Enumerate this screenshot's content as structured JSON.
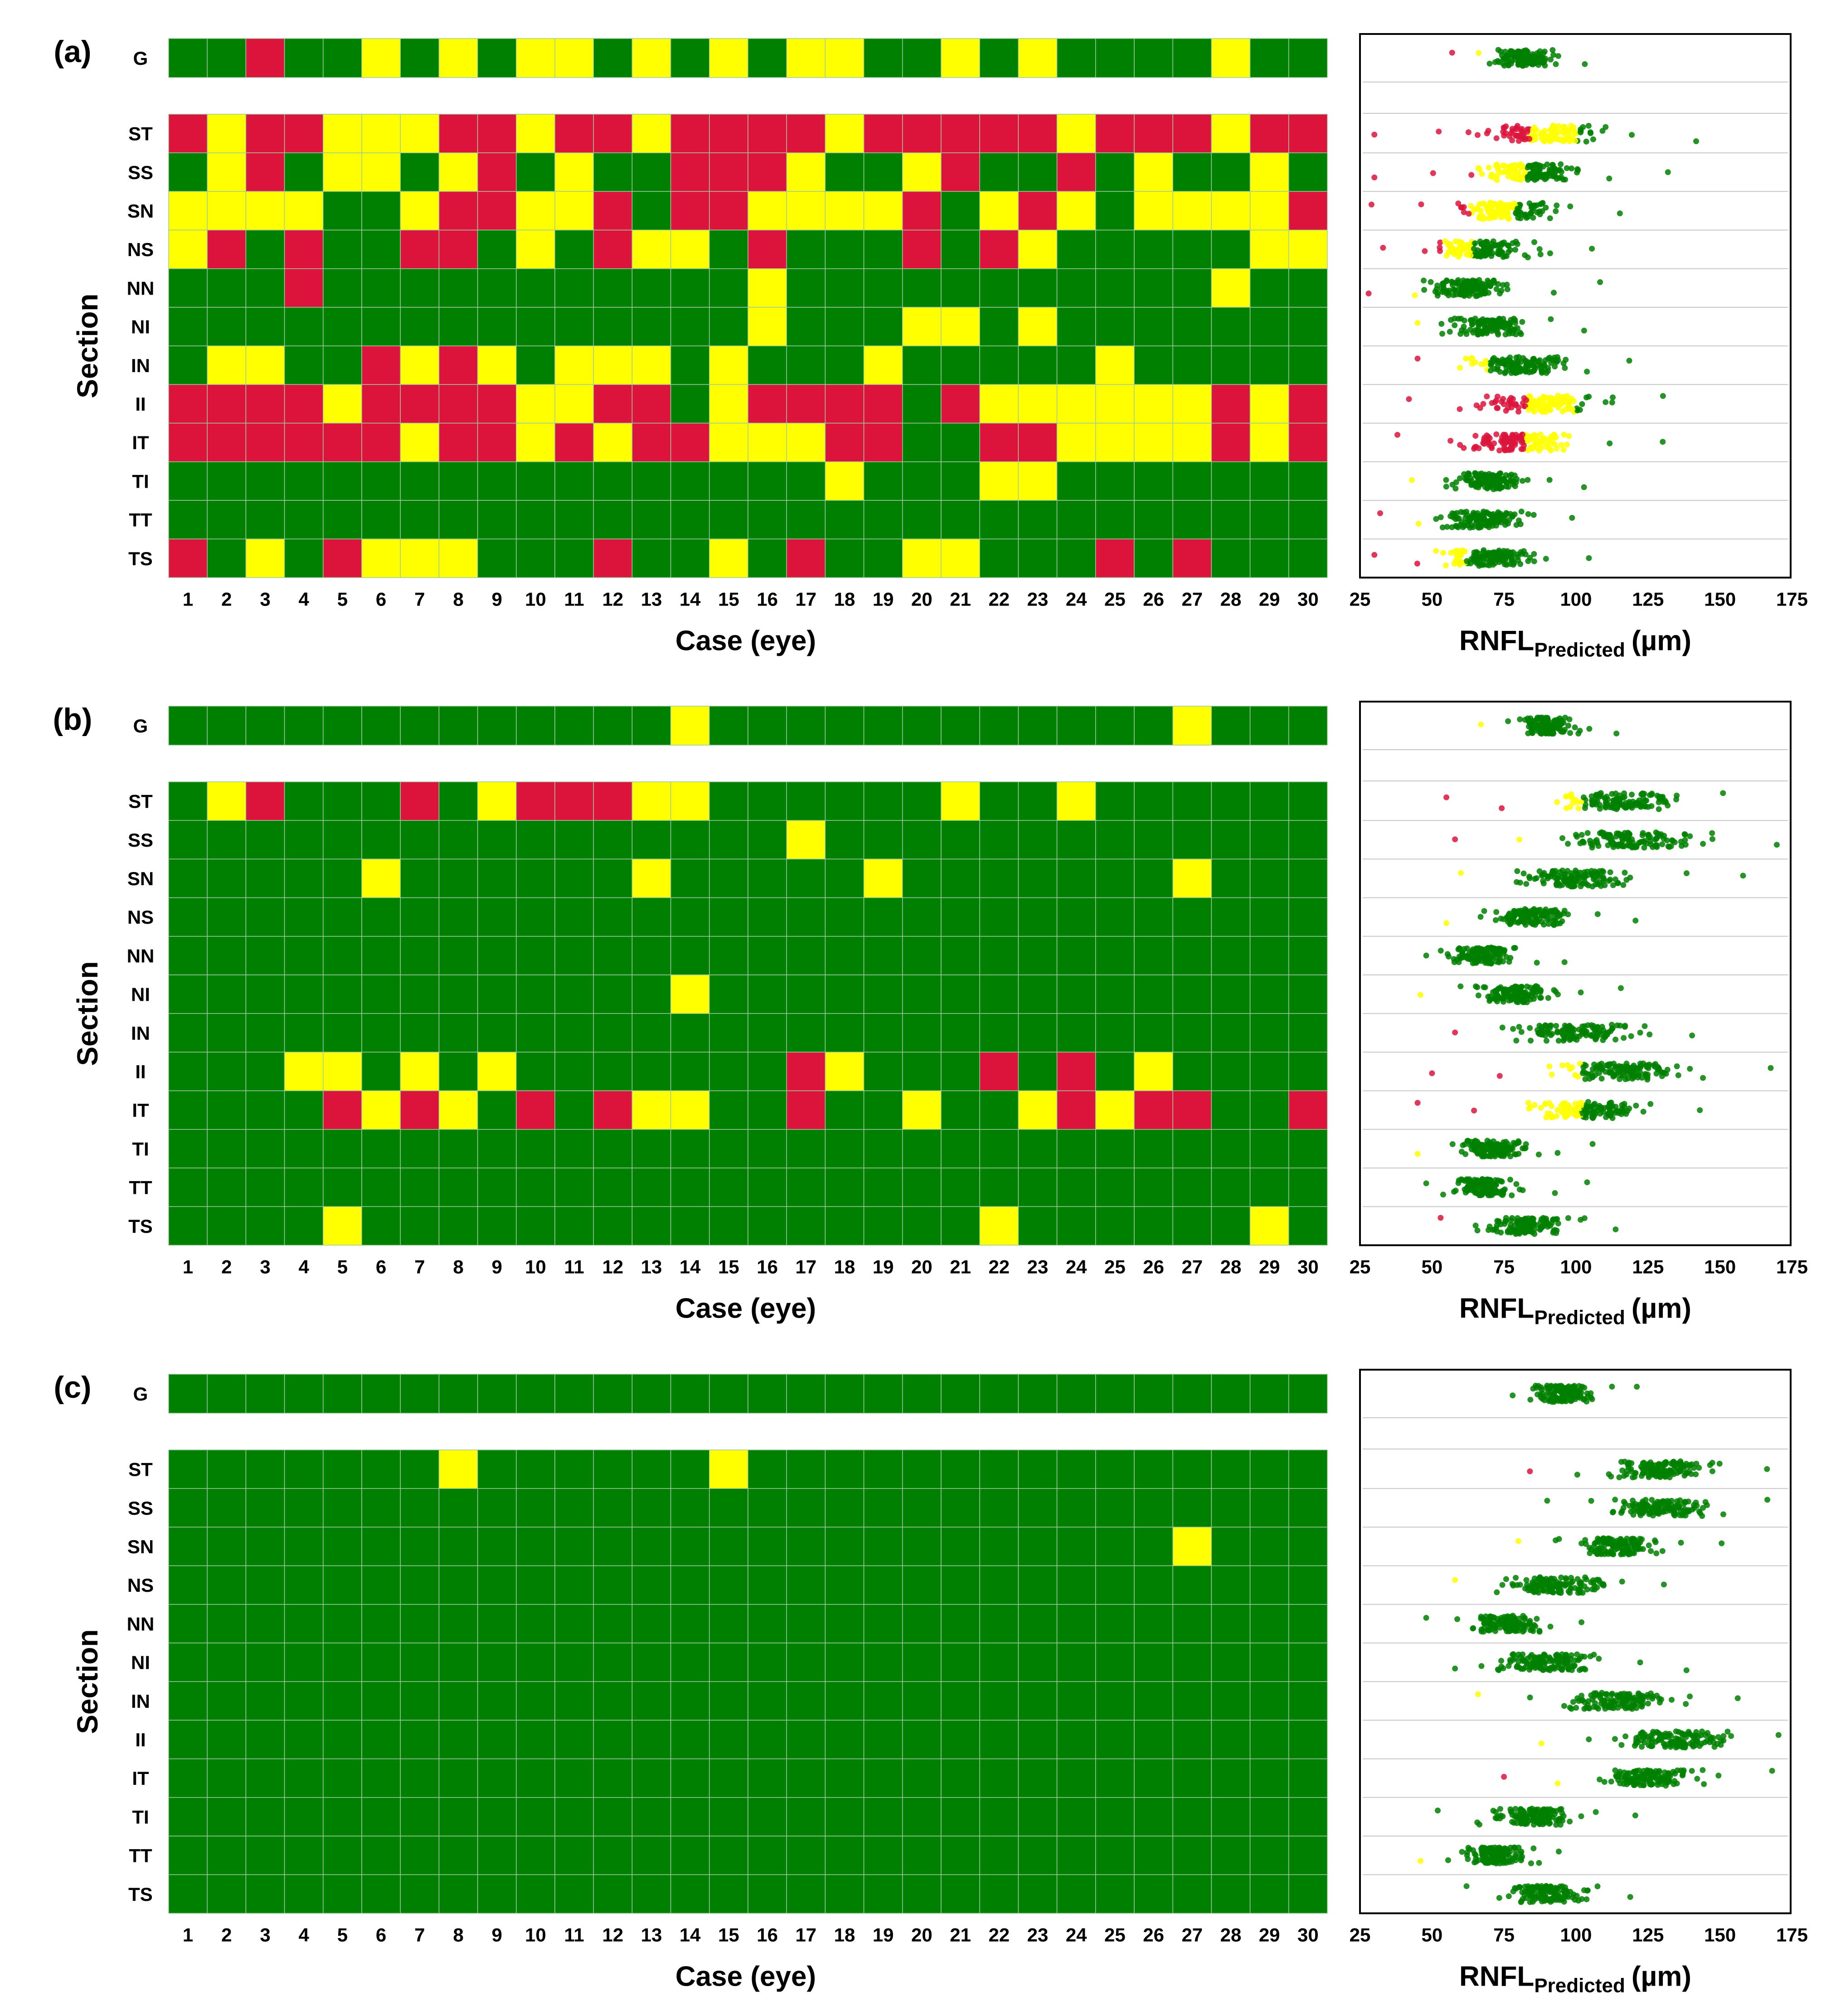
{
  "colors": {
    "green": "#008000",
    "yellow": "#ffff00",
    "red": "#dc143c",
    "grid_line": "#a0c8a0",
    "text": "#000000"
  },
  "chart_data": [
    {
      "panel": "(a)",
      "type": "heatmap",
      "xlabel": "Case (eye)",
      "ylabel": "Section",
      "global_row": {
        "label": "G",
        "values": "GGRGGYGYGYYGYGYGYYGGYGYGGGGYGG"
      },
      "sections": [
        "ST",
        "SS",
        "SN",
        "NS",
        "NN",
        "NI",
        "IN",
        "II",
        "IT",
        "TI",
        "TT",
        "TS"
      ],
      "cases": [
        "1",
        "2",
        "3",
        "4",
        "5",
        "6",
        "7",
        "8",
        "9",
        "10",
        "11",
        "12",
        "13",
        "14",
        "15",
        "16",
        "17",
        "18",
        "19",
        "20",
        "21",
        "22",
        "23",
        "24",
        "25",
        "26",
        "27",
        "28",
        "29",
        "30"
      ],
      "matrix": [
        "RYRRYYYRRYRRYRRRRYRRRRRYRRRYRR",
        "GYRGYYGYRGYGGRRRYGGYRGGRGYGGYG",
        "YYYYGGYRRYYRGRRYYYYRGYRYGYYYYR",
        "YRGRGGRRGYGRYYGRGGGRGRYGGGGGYY",
        "GGGRGGGGGGGGGGGYGGGGGGGGGGGYGG",
        "GGGGGGGGGGGGGGGYGGGYYGYGGGGGGG",
        "GYYGGRYRYGYYYGYGGGYGGGGGYGGGGG",
        "RRRRYRRRRYYRRGYRRRRGRYYYYYYRYR",
        "RRRRRRYRRYRYRRYYYRRGGRRYYYYRYR",
        "GGGGGGGGGGGGGGGGGYGGGYYGGGGGGG",
        "GGGGGGGGGGGGGGGGGGGGGGGGGGGGGG",
        "RGYGRYYYGGGRGGYGRGGYYGGGRGRGGG"
      ],
      "legend": {
        "G": "green",
        "Y": "yellow",
        "R": "red"
      },
      "strip_plot": {
        "xlabel": "RNFL",
        "xlabel_subscript": "Predicted",
        "xlabel_unit": "(µm)",
        "xticks": [
          "25",
          "50",
          "75",
          "100",
          "125",
          "150",
          "175"
        ],
        "xlim": [
          25,
          175
        ],
        "rows": [
          "G",
          "ST",
          "SS",
          "SN",
          "NS",
          "NN",
          "NI",
          "IN",
          "II",
          "IT",
          "TI",
          "TT",
          "TS"
        ],
        "ranges": [
          {
            "row": "G",
            "min": 57,
            "max": 104,
            "red_to": 59,
            "yellow_to": 69,
            "center": 82,
            "spread": 10
          },
          {
            "row": "ST",
            "min": 30,
            "max": 144,
            "red_to": 84,
            "yellow_to": 100,
            "center": 90,
            "spread": 20
          },
          {
            "row": "SS",
            "min": 30,
            "max": 134,
            "red_to": 64,
            "yellow_to": 83,
            "center": 82,
            "spread": 18
          },
          {
            "row": "SN",
            "min": 29,
            "max": 117,
            "red_to": 63,
            "yellow_to": 79,
            "center": 75,
            "spread": 16
          },
          {
            "row": "NS",
            "min": 33,
            "max": 107,
            "red_to": 53,
            "yellow_to": 64,
            "center": 68,
            "spread": 15
          },
          {
            "row": "NN",
            "min": 28,
            "max": 110,
            "red_to": 33,
            "yellow_to": 46,
            "center": 62,
            "spread": 14
          },
          {
            "row": "NI",
            "min": 45,
            "max": 104,
            "red_to": 0,
            "yellow_to": 52,
            "center": 70,
            "spread": 12
          },
          {
            "row": "IN",
            "min": 45,
            "max": 120,
            "red_to": 55,
            "yellow_to": 70,
            "center": 82,
            "spread": 16
          },
          {
            "row": "II",
            "min": 42,
            "max": 132,
            "red_to": 83,
            "yellow_to": 100,
            "center": 86,
            "spread": 18
          },
          {
            "row": "IT",
            "min": 38,
            "max": 132,
            "red_to": 82,
            "yellow_to": 98,
            "center": 80,
            "spread": 18
          },
          {
            "row": "TI",
            "min": 43,
            "max": 104,
            "red_to": 0,
            "yellow_to": 50,
            "center": 70,
            "spread": 12
          },
          {
            "row": "TT",
            "min": 32,
            "max": 100,
            "red_to": 40,
            "yellow_to": 48,
            "center": 68,
            "spread": 13
          },
          {
            "row": "TS",
            "min": 30,
            "max": 106,
            "red_to": 48,
            "yellow_to": 62,
            "center": 70,
            "spread": 15
          }
        ]
      }
    },
    {
      "panel": "(b)",
      "type": "heatmap",
      "xlabel": "Case (eye)",
      "ylabel": "Section",
      "global_row": {
        "label": "G",
        "values": "GGGGGGGGGGGGGYGGGGGGGGGGGGYGGG"
      },
      "sections": [
        "ST",
        "SS",
        "SN",
        "NS",
        "NN",
        "NI",
        "IN",
        "II",
        "IT",
        "TI",
        "TT",
        "TS"
      ],
      "cases": [
        "1",
        "2",
        "3",
        "4",
        "5",
        "6",
        "7",
        "8",
        "9",
        "10",
        "11",
        "12",
        "13",
        "14",
        "15",
        "16",
        "17",
        "18",
        "19",
        "20",
        "21",
        "22",
        "23",
        "24",
        "25",
        "26",
        "27",
        "28",
        "29",
        "30"
      ],
      "matrix": [
        "GYRGGGRGYRRRYYGGGGGGYGGYGGGGGG",
        "GGGGGGGGGGGGGGGGYGGGGGGGGGGGGG",
        "GGGGGYGGGGGGYGGGGGYGGGGGGGYGGG",
        "GGGGGGGGGGGGGGGGGGGGGGGGGGGGGG",
        "GGGGGGGGGGGGGGGGGGGGGGGGGGGGGG",
        "GGGGGGGGGGGGGYGGGGGGGGGGGGGGGG",
        "GGGGGGGGGGGGGGGGGGGGGGGGGGGGGG",
        "GGGYYGYGYGGGGGGGRYGGGRGRGYGGGG",
        "GGGGRYRYGRGRYYGGRGGYGGYRYRRGGR",
        "GGGGGGGGGGGGGGGGGGGGGGGGGGGGGG",
        "GGGGGGGGGGGGGGGGGGGGGGGGGGGGGG",
        "GGGGYGGGGGGGGGGGGGGGGYGGGGGGYG"
      ],
      "legend": {
        "G": "green",
        "Y": "yellow",
        "R": "red"
      },
      "strip_plot": {
        "xlabel": "RNFL",
        "xlabel_subscript": "Predicted",
        "xlabel_unit": "(µm)",
        "xticks": [
          "25",
          "50",
          "75",
          "100",
          "125",
          "150",
          "175"
        ],
        "xlim": [
          25,
          175
        ],
        "rows": [
          "G",
          "ST",
          "SS",
          "SN",
          "NS",
          "NN",
          "NI",
          "IN",
          "II",
          "IT",
          "TI",
          "TT",
          "TS"
        ],
        "ranges": [
          {
            "row": "G",
            "min": 67,
            "max": 115,
            "red_to": 0,
            "yellow_to": 70,
            "center": 90,
            "spread": 9
          },
          {
            "row": "ST",
            "min": 55,
            "max": 153,
            "red_to": 83,
            "yellow_to": 102,
            "center": 115,
            "spread": 18
          },
          {
            "row": "SS",
            "min": 58,
            "max": 172,
            "red_to": 63,
            "yellow_to": 90,
            "center": 120,
            "spread": 20
          },
          {
            "row": "SN",
            "min": 60,
            "max": 160,
            "red_to": 0,
            "yellow_to": 78,
            "center": 100,
            "spread": 18
          },
          {
            "row": "NS",
            "min": 55,
            "max": 122,
            "red_to": 0,
            "yellow_to": 65,
            "center": 85,
            "spread": 14
          },
          {
            "row": "NN",
            "min": 48,
            "max": 97,
            "red_to": 0,
            "yellow_to": 0,
            "center": 68,
            "spread": 10
          },
          {
            "row": "NI",
            "min": 46,
            "max": 117,
            "red_to": 0,
            "yellow_to": 50,
            "center": 78,
            "spread": 12
          },
          {
            "row": "IN",
            "min": 58,
            "max": 142,
            "red_to": 62,
            "yellow_to": 66,
            "center": 100,
            "spread": 18
          },
          {
            "row": "II",
            "min": 50,
            "max": 170,
            "red_to": 85,
            "yellow_to": 102,
            "center": 115,
            "spread": 22
          },
          {
            "row": "IT",
            "min": 45,
            "max": 145,
            "red_to": 80,
            "yellow_to": 102,
            "center": 105,
            "spread": 20
          },
          {
            "row": "TI",
            "min": 45,
            "max": 107,
            "red_to": 0,
            "yellow_to": 50,
            "center": 72,
            "spread": 12
          },
          {
            "row": "TT",
            "min": 48,
            "max": 105,
            "red_to": 0,
            "yellow_to": 0,
            "center": 68,
            "spread": 10
          },
          {
            "row": "TS",
            "min": 53,
            "max": 115,
            "red_to": 56,
            "yellow_to": 65,
            "center": 82,
            "spread": 13
          }
        ]
      }
    },
    {
      "panel": "(c)",
      "type": "heatmap",
      "xlabel": "Case (eye)",
      "ylabel": "Section",
      "global_row": {
        "label": "G",
        "values": "GGGGGGGGGGGGGGGGGGGGGGGGGGGGGG"
      },
      "sections": [
        "ST",
        "SS",
        "SN",
        "NS",
        "NN",
        "NI",
        "IN",
        "II",
        "IT",
        "TI",
        "TT",
        "TS"
      ],
      "cases": [
        "1",
        "2",
        "3",
        "4",
        "5",
        "6",
        "7",
        "8",
        "9",
        "10",
        "11",
        "12",
        "13",
        "14",
        "15",
        "16",
        "17",
        "18",
        "19",
        "20",
        "21",
        "22",
        "23",
        "24",
        "25",
        "26",
        "27",
        "28",
        "29",
        "30"
      ],
      "matrix": [
        "GGGGGGGYGGGGGGYGGGGGGGGGGGGGGG",
        "GGGGGGGGGGGGGGGGGGGGGGGGGGGGGG",
        "GGGGGGGGGGGGGGGGGGGGGGGGGGYGGG",
        "GGGGGGGGGGGGGGGGGGGGGGGGGGGGGG",
        "GGGGGGGGGGGGGGGGGGGGGGGGGGGGGG",
        "GGGGGGGGGGGGGGGGGGGGGGGGGGGGGG",
        "GGGGGGGGGGGGGGGGGGGGGGGGGGGGGG",
        "GGGGGGGGGGGGGGGGGGGGGGGGGGGGGG",
        "GGGGGGGGGGGGGGGGGGGGGGGGGGGGGG",
        "GGGGGGGGGGGGGGGGGGGGGGGGGGGGGG",
        "GGGGGGGGGGGGGGGGGGGGGGGGGGGGGG",
        "GGGGGGGGGGGGGGGGGGGGGGGGGGGGGG"
      ],
      "legend": {
        "G": "green",
        "Y": "yellow",
        "R": "red"
      },
      "strip_plot": {
        "xlabel": "RNFL",
        "xlabel_subscript": "Predicted",
        "xlabel_unit": "(µm)",
        "xticks": [
          "25",
          "50",
          "75",
          "100",
          "125",
          "150",
          "175"
        ],
        "xlim": [
          25,
          175
        ],
        "rows": [
          "G",
          "ST",
          "SS",
          "SN",
          "NS",
          "NN",
          "NI",
          "IN",
          "II",
          "IT",
          "TI",
          "TT",
          "TS"
        ],
        "ranges": [
          {
            "row": "G",
            "min": 78,
            "max": 122,
            "red_to": 0,
            "yellow_to": 0,
            "center": 95,
            "spread": 9
          },
          {
            "row": "ST",
            "min": 84,
            "max": 168,
            "red_to": 86,
            "yellow_to": 97,
            "center": 130,
            "spread": 16
          },
          {
            "row": "SS",
            "min": 90,
            "max": 168,
            "red_to": 0,
            "yellow_to": 0,
            "center": 130,
            "spread": 16
          },
          {
            "row": "SN",
            "min": 80,
            "max": 152,
            "red_to": 0,
            "yellow_to": 82,
            "center": 115,
            "spread": 15
          },
          {
            "row": "NS",
            "min": 58,
            "max": 132,
            "red_to": 0,
            "yellow_to": 66,
            "center": 95,
            "spread": 16
          },
          {
            "row": "NN",
            "min": 48,
            "max": 103,
            "red_to": 0,
            "yellow_to": 0,
            "center": 75,
            "spread": 12
          },
          {
            "row": "NI",
            "min": 58,
            "max": 140,
            "red_to": 0,
            "yellow_to": 0,
            "center": 90,
            "spread": 16
          },
          {
            "row": "IN",
            "min": 66,
            "max": 158,
            "red_to": 0,
            "yellow_to": 67,
            "center": 115,
            "spread": 18
          },
          {
            "row": "II",
            "min": 88,
            "max": 172,
            "red_to": 0,
            "yellow_to": 100,
            "center": 135,
            "spread": 17
          },
          {
            "row": "IT",
            "min": 75,
            "max": 170,
            "red_to": 76,
            "yellow_to": 100,
            "center": 125,
            "spread": 16
          },
          {
            "row": "TI",
            "min": 52,
            "max": 122,
            "red_to": 0,
            "yellow_to": 0,
            "center": 85,
            "spread": 14
          },
          {
            "row": "TT",
            "min": 46,
            "max": 95,
            "red_to": 0,
            "yellow_to": 49,
            "center": 72,
            "spread": 10
          },
          {
            "row": "TS",
            "min": 62,
            "max": 120,
            "red_to": 0,
            "yellow_to": 0,
            "center": 90,
            "spread": 12
          }
        ]
      }
    }
  ]
}
